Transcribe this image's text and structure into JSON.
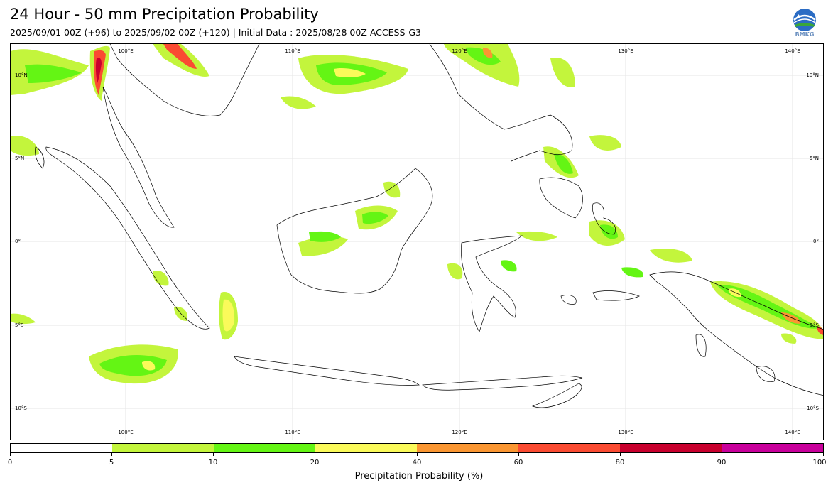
{
  "header": {
    "title": "24 Hour - 50 mm Precipitation Probability",
    "subtitle": "2025/09/01 00Z (+96) to 2025/09/02 00Z (+120) | Initial Data : 2025/08/28 00Z ACCESS-G3",
    "logo_text": "BMKG"
  },
  "map": {
    "lat_labels": [
      "10°N",
      "5°N",
      "0°",
      "5°S",
      "10°S"
    ],
    "lon_labels": [
      "100°E",
      "110°E",
      "120°E",
      "130°E",
      "140°E"
    ]
  },
  "colorbar": {
    "label": "Precipitation Probability (%)",
    "ticks": [
      "0",
      "5",
      "10",
      "20",
      "40",
      "60",
      "80",
      "90",
      "100"
    ],
    "colors": [
      "#ffffff",
      "#c3f53c",
      "#64f514",
      "#fafa5a",
      "#fa9632",
      "#fa4b32",
      "#c8002d",
      "#c8009b"
    ]
  },
  "colors": {
    "coastline": "#000000",
    "grid": "#e6e6e6"
  }
}
